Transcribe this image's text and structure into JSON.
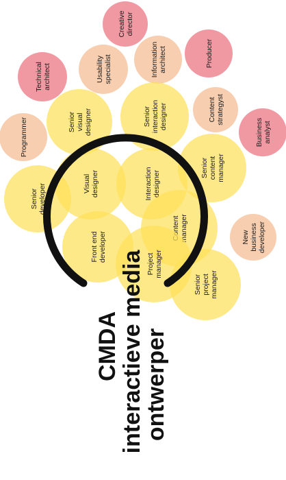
{
  "title": {
    "line1": "CMDA",
    "line2": "interactieve media",
    "line3": "ontwerper"
  },
  "colors": {
    "core": "#fde15a",
    "related": "#f6c9a7",
    "external": "#ee8e98",
    "arc": "#111111"
  },
  "roles": [
    {
      "id": "creative-director",
      "group": "external",
      "lines": [
        "Creative",
        "director"
      ]
    },
    {
      "id": "producer",
      "group": "external",
      "lines": [
        "Producer"
      ]
    },
    {
      "id": "technical-architect",
      "group": "external",
      "lines": [
        "Technical",
        "architect"
      ]
    },
    {
      "id": "business-analyst",
      "group": "external",
      "lines": [
        "Business",
        "analyst"
      ]
    },
    {
      "id": "usability-specialist",
      "group": "related",
      "lines": [
        "Usability",
        "specialist"
      ]
    },
    {
      "id": "information-architect",
      "group": "related",
      "lines": [
        "Information",
        "architect"
      ]
    },
    {
      "id": "content-strategyst",
      "group": "related",
      "lines": [
        "Content",
        "strategyst"
      ]
    },
    {
      "id": "programmer",
      "group": "related",
      "lines": [
        "Programmer"
      ]
    },
    {
      "id": "new-business-developer",
      "group": "related",
      "lines": [
        "New",
        "business",
        "developer"
      ]
    },
    {
      "id": "senior-visual-designer",
      "group": "core",
      "lines": [
        "Senior",
        "visual",
        "designer"
      ]
    },
    {
      "id": "senior-interaction-designer",
      "group": "core",
      "lines": [
        "Senior",
        "interaction",
        "designer"
      ]
    },
    {
      "id": "senior-content-manager",
      "group": "core",
      "lines": [
        "Senior",
        "content",
        "manager"
      ]
    },
    {
      "id": "senior-developer",
      "group": "core",
      "lines": [
        "Senior",
        "developer"
      ]
    },
    {
      "id": "visual-designer",
      "group": "core",
      "lines": [
        "Visual",
        "designer"
      ]
    },
    {
      "id": "interaction-designer",
      "group": "core",
      "lines": [
        "Interaction",
        "designer"
      ]
    },
    {
      "id": "front-end-developer",
      "group": "core",
      "lines": [
        "Front end",
        "developer"
      ]
    },
    {
      "id": "content-manager",
      "group": "core",
      "lines": [
        "Content",
        "manager"
      ]
    },
    {
      "id": "project-manager",
      "group": "core",
      "lines": [
        "Project",
        "manager"
      ]
    },
    {
      "id": "senior-project-manager",
      "group": "core",
      "lines": [
        "Senior",
        "project",
        "manager"
      ]
    }
  ]
}
